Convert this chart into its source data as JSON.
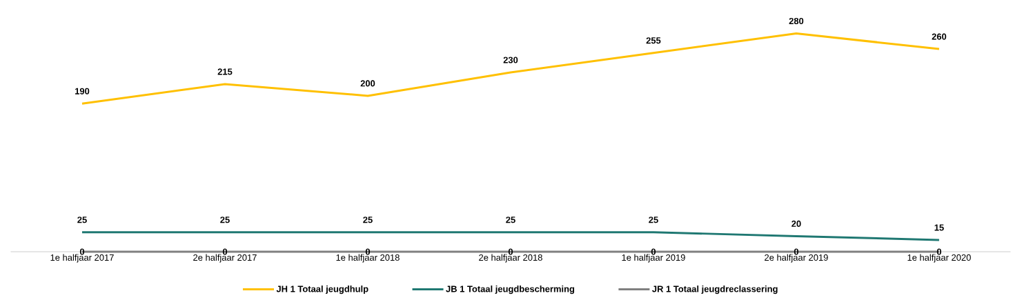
{
  "chart_data": {
    "type": "line",
    "categories": [
      "1e halfjaar 2017",
      "2e halfjaar 2017",
      "1e halfjaar 2018",
      "2e halfjaar 2018",
      "1e halfjaar 2019",
      "2e halfjaar 2019",
      "1e halfjaar 2020"
    ],
    "series": [
      {
        "name": "JH 1 Totaal jeugdhulp",
        "color": "#ffc000",
        "values": [
          190,
          215,
          200,
          230,
          255,
          280,
          260
        ]
      },
      {
        "name": "JB 1 Totaal jeugdbescherming",
        "color": "#1f7872",
        "values": [
          25,
          25,
          25,
          25,
          25,
          20,
          15
        ]
      },
      {
        "name": "JR 1 Totaal jeugdreclassering",
        "color": "#808080",
        "values": [
          0,
          0,
          0,
          0,
          0,
          0,
          0
        ]
      }
    ],
    "data_labels": true,
    "legend": "bottom",
    "marker": "none",
    "line_style": "solid"
  }
}
